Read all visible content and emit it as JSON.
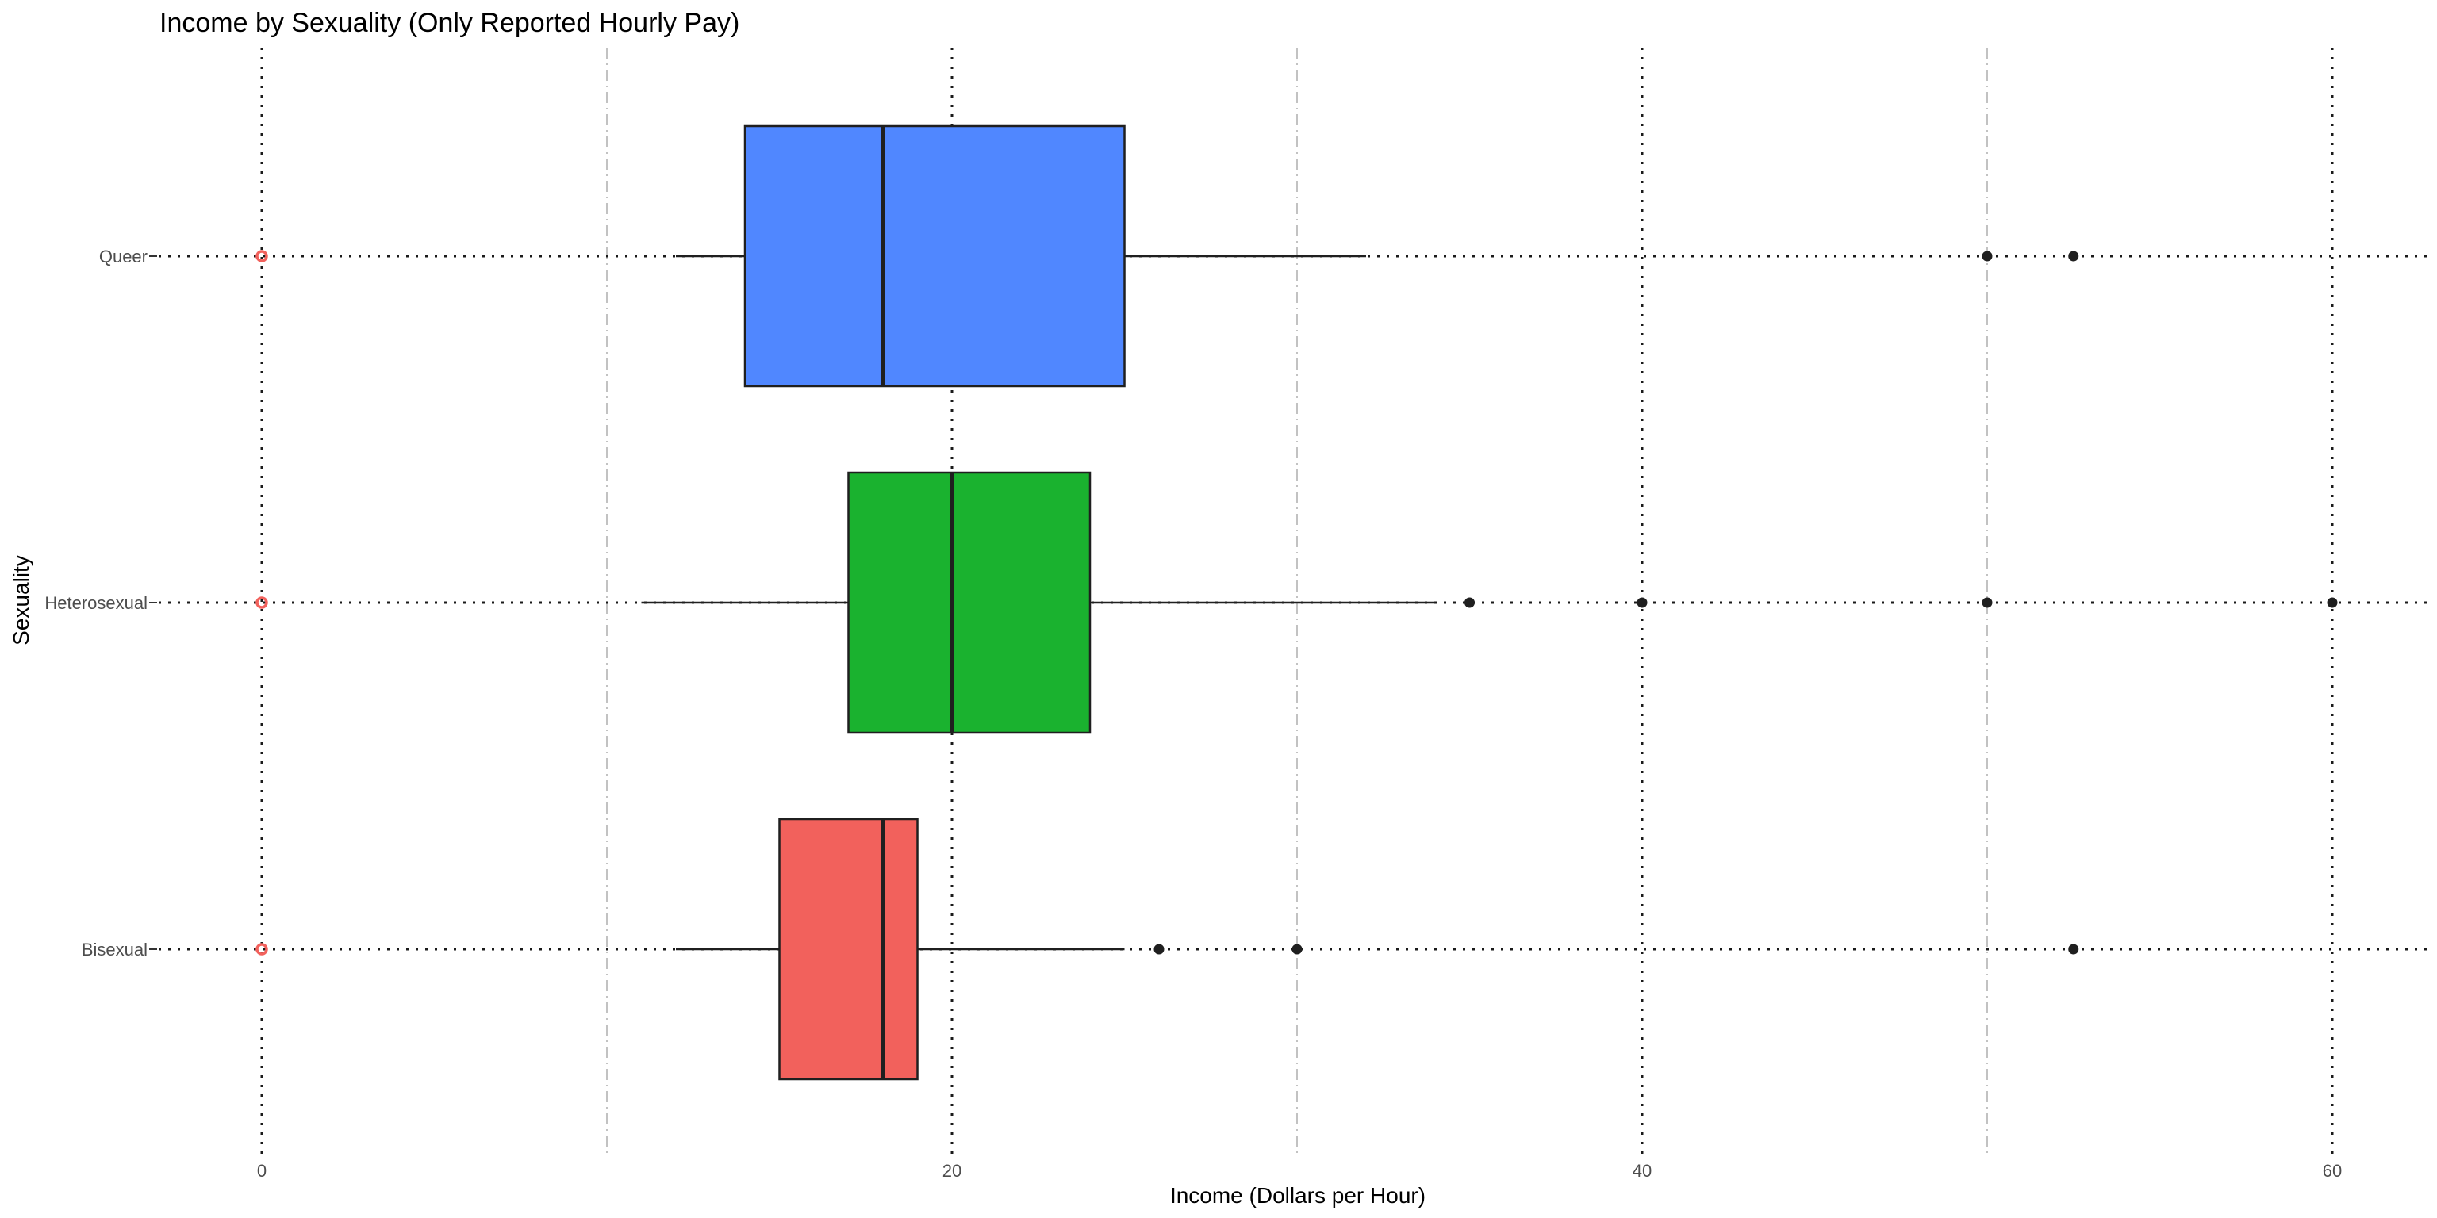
{
  "chart_data": {
    "type": "boxplot",
    "orientation": "horizontal",
    "title": "Income by Sexuality (Only Reported Hourly Pay)",
    "xlabel": "Income (Dollars per Hour)",
    "ylabel": "Sexuality",
    "xlim": [
      -3,
      62
    ],
    "x_ticks": [
      0,
      20,
      40,
      60
    ],
    "x_tick_labels": [
      "0",
      "20",
      "40",
      "60"
    ],
    "major_grid_style": "dotted",
    "minor_grid": [
      10,
      30,
      50
    ],
    "minor_grid_style": "dash-dot",
    "legend": "none",
    "categories": [
      "Queer",
      "Heterosexual",
      "Bisexual"
    ],
    "series": [
      {
        "name": "Queer",
        "color": "#5087ff",
        "whisker_low": 12,
        "q1": 14,
        "median": 18,
        "q3": 25,
        "whisker_high": 32,
        "outliers": [
          50,
          52.5
        ],
        "marked_zero": 0
      },
      {
        "name": "Heterosexual",
        "color": "#1ab22f",
        "whisker_low": 11,
        "q1": 17,
        "median": 20,
        "q3": 24,
        "whisker_high": 34,
        "outliers": [
          35,
          40,
          50,
          60
        ],
        "marked_zero": 0
      },
      {
        "name": "Bisexual",
        "color": "#f2615c",
        "whisker_low": 12,
        "q1": 15,
        "median": 18,
        "q3": 19,
        "whisker_high": 25,
        "outliers": [
          26,
          30,
          52.5
        ],
        "marked_zero": 0
      }
    ],
    "colors": {
      "box_stroke": "#1f1f1f",
      "outlier": "#1f1f1f",
      "zero_marker": "#f2615c",
      "grid": "#1a1a1a",
      "minor_grid": "#b3b3b3"
    }
  }
}
